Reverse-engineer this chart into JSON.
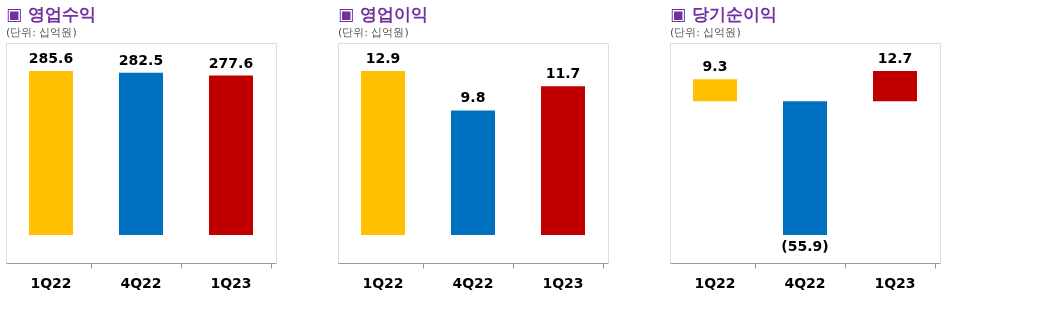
{
  "chart_data": [
    {
      "type": "bar",
      "title": "▣ 영업수익",
      "subtitle": "(단위: 십억원)",
      "categories": [
        "1Q22",
        "4Q22",
        "1Q23"
      ],
      "values": [
        285.6,
        282.5,
        277.6
      ],
      "colors": [
        "#ffc000",
        "#0070c0",
        "#c00000"
      ],
      "data_labels": true,
      "grid": false
    },
    {
      "type": "bar",
      "title": "▣ 영업이익",
      "subtitle": "(단위: 십억원)",
      "categories": [
        "1Q22",
        "4Q22",
        "1Q23"
      ],
      "values": [
        12.9,
        9.8,
        11.7
      ],
      "colors": [
        "#ffc000",
        "#0070c0",
        "#c00000"
      ],
      "data_labels": true,
      "grid": false
    },
    {
      "type": "bar",
      "title": "▣ 당기순이익",
      "subtitle": "(단위: 십억원)",
      "categories": [
        "1Q22",
        "4Q22",
        "1Q23"
      ],
      "values": [
        9.3,
        -55.9,
        12.7
      ],
      "value_labels": [
        "9.3",
        "(55.9)",
        "12.7"
      ],
      "colors": [
        "#ffc000",
        "#0070c0",
        "#c00000"
      ],
      "grid": false
    }
  ]
}
